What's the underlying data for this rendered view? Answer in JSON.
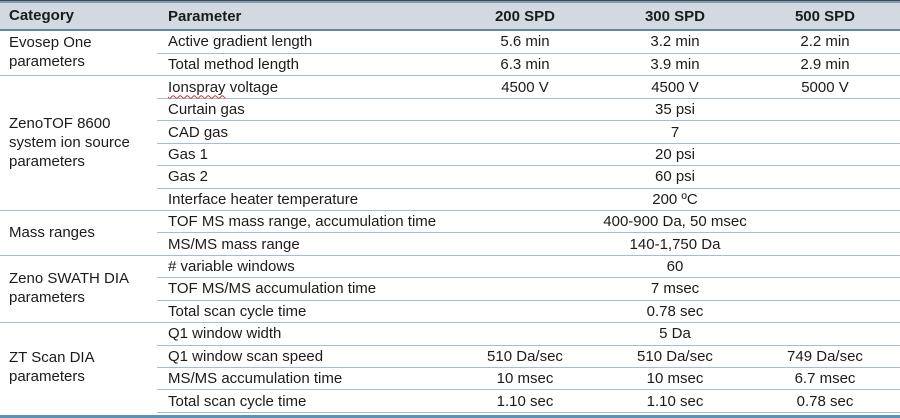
{
  "colors": {
    "header_bg": "#d3d9e1",
    "text": "#1b1b1b",
    "row_rule": "#a7bccf",
    "header_rule": "#5e87a8",
    "top_rule_dark": "#474747",
    "top_rule_blue": "#7e9cb6",
    "bottom_rule": "#5e92b4",
    "spellcheck": "#d0342c"
  },
  "table": {
    "columns": [
      "Category",
      "Parameter",
      "200 SPD",
      "300 SPD",
      "500 SPD"
    ],
    "groups": [
      {
        "category": "Evosep One parameters",
        "rows": [
          {
            "parameter": "Active gradient length",
            "values": [
              "5.6 min",
              "3.2 min",
              "2.2 min"
            ]
          },
          {
            "parameter": "Total method length",
            "values": [
              "6.3 min",
              "3.9 min",
              "2.9 min"
            ]
          }
        ]
      },
      {
        "category": "ZenoTOF 8600 system ion source parameters",
        "rows": [
          {
            "parameter": "Ionspray voltage",
            "misspelled_word": "Ionspray",
            "values": [
              "4500 V",
              "4500 V",
              "5000 V"
            ]
          },
          {
            "parameter": "Curtain gas",
            "span_value": "35 psi"
          },
          {
            "parameter": "CAD gas",
            "span_value": "7"
          },
          {
            "parameter": "Gas 1",
            "span_value": "20 psi"
          },
          {
            "parameter": "Gas 2",
            "span_value": "60 psi"
          },
          {
            "parameter": "Interface heater temperature",
            "span_value": "200 ºC"
          }
        ]
      },
      {
        "category": "Mass ranges",
        "rows": [
          {
            "parameter": "TOF MS mass range, accumulation time",
            "span_value": "400-900 Da, 50 msec"
          },
          {
            "parameter": "MS/MS mass range",
            "span_value": "140-1,750 Da"
          }
        ]
      },
      {
        "category": "Zeno SWATH DIA parameters",
        "rows": [
          {
            "parameter": "# variable windows",
            "span_value": "60"
          },
          {
            "parameter": "TOF MS/MS accumulation time",
            "span_value": "7 msec"
          },
          {
            "parameter": "Total scan cycle time",
            "span_value": "0.78 sec"
          }
        ]
      },
      {
        "category": "ZT Scan DIA parameters",
        "rows": [
          {
            "parameter": "Q1 window width",
            "span_value": "5 Da"
          },
          {
            "parameter": "Q1 window scan speed",
            "values": [
              "510 Da/sec",
              "510 Da/sec",
              "749 Da/sec"
            ]
          },
          {
            "parameter": "MS/MS accumulation time",
            "values": [
              "10 msec",
              "10 msec",
              "6.7 msec"
            ]
          },
          {
            "parameter": "Total scan cycle time",
            "values": [
              "1.10 sec",
              "1.10 sec",
              "0.78 sec"
            ]
          }
        ]
      }
    ]
  }
}
